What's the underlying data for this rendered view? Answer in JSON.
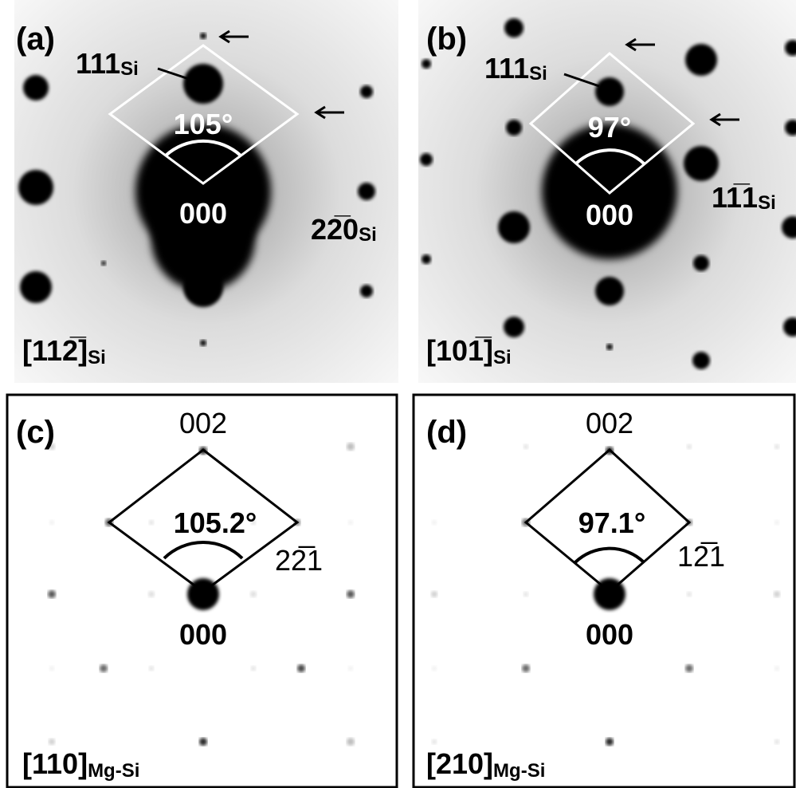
{
  "panels": [
    {
      "label": "(a)",
      "top": {
        "text": "111",
        "sub": "Si"
      },
      "side": {
        "text": "22̅0",
        "sub": "Si"
      },
      "angle": "105°",
      "origin": "000",
      "zone": {
        "text": "[112̅]",
        "sub": "Si"
      }
    },
    {
      "label": "(b)",
      "top": {
        "text": "111",
        "sub": "Si"
      },
      "side": {
        "text": "11̅1",
        "sub": "Si"
      },
      "angle": "97°",
      "origin": "000",
      "zone": {
        "text": "[101̅]",
        "sub": "Si"
      }
    },
    {
      "label": "(c)",
      "top": {
        "text": "002"
      },
      "side": {
        "text": "22̅1"
      },
      "angle": "105.2°",
      "origin": "000",
      "zone": {
        "text": "[110]",
        "sub": "Mg-Si"
      }
    },
    {
      "label": "(d)",
      "top": {
        "text": "002"
      },
      "side": {
        "text": "12̅1"
      },
      "angle": "97.1°",
      "origin": "000",
      "zone": {
        "text": "[210]",
        "sub": "Mg-Si"
      }
    }
  ]
}
